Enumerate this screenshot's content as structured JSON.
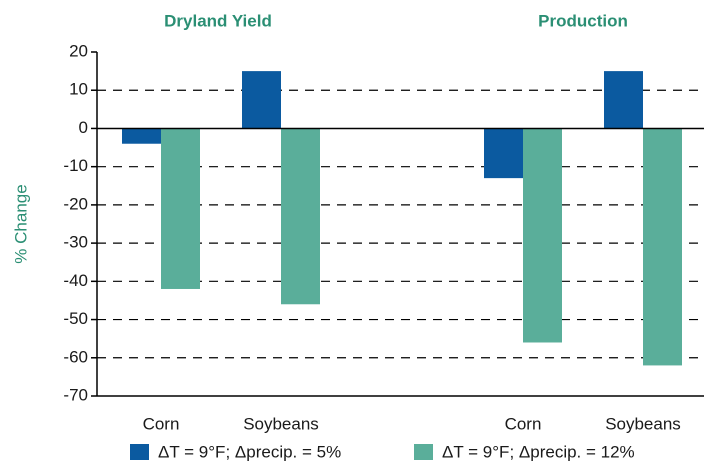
{
  "chart_data": {
    "type": "bar",
    "panels": [
      "Dryland Yield",
      "Production"
    ],
    "categories": [
      "Corn",
      "Soybeans",
      "Corn",
      "Soybeans"
    ],
    "y_label": "% Change",
    "series": [
      {
        "name": "ΔT = 9°F; Δprecip. = 5%",
        "color": "#0b5aa0",
        "values": [
          -4,
          15,
          -13,
          15
        ]
      },
      {
        "name": "ΔT = 9°F; Δprecip. = 12%",
        "color": "#5aae9a",
        "values": [
          -42,
          -46,
          -56,
          -62
        ]
      }
    ],
    "ylim": [
      -70,
      20
    ],
    "yticks": [
      20,
      10,
      0,
      -10,
      -20,
      -30,
      -40,
      -50,
      -60,
      -70
    ],
    "grid": true
  }
}
